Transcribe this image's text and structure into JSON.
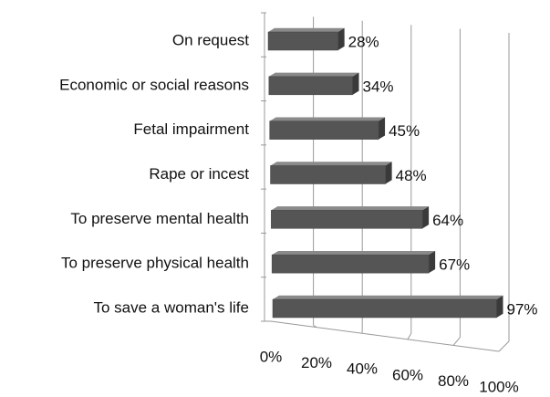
{
  "chart_data": {
    "type": "bar3d-horizontal",
    "categories": [
      "On request",
      "Economic or social reasons",
      "Fetal impairment",
      "Rape or incest",
      "To preserve mental health",
      "To preserve physical health",
      "To save a woman's life"
    ],
    "values": [
      28,
      34,
      45,
      48,
      64,
      67,
      97
    ],
    "value_labels": [
      "28%",
      "34%",
      "45%",
      "48%",
      "64%",
      "67%",
      "97%"
    ],
    "color": "#555555",
    "xlim": [
      0,
      100
    ],
    "xticks": [
      {
        "value": 0,
        "label": "0%"
      },
      {
        "value": 20,
        "label": "20%"
      },
      {
        "value": 40,
        "label": "40%"
      },
      {
        "value": 60,
        "label": "60%"
      },
      {
        "value": 80,
        "label": "80%"
      },
      {
        "value": 100,
        "label": "100%"
      }
    ],
    "grid": true
  }
}
